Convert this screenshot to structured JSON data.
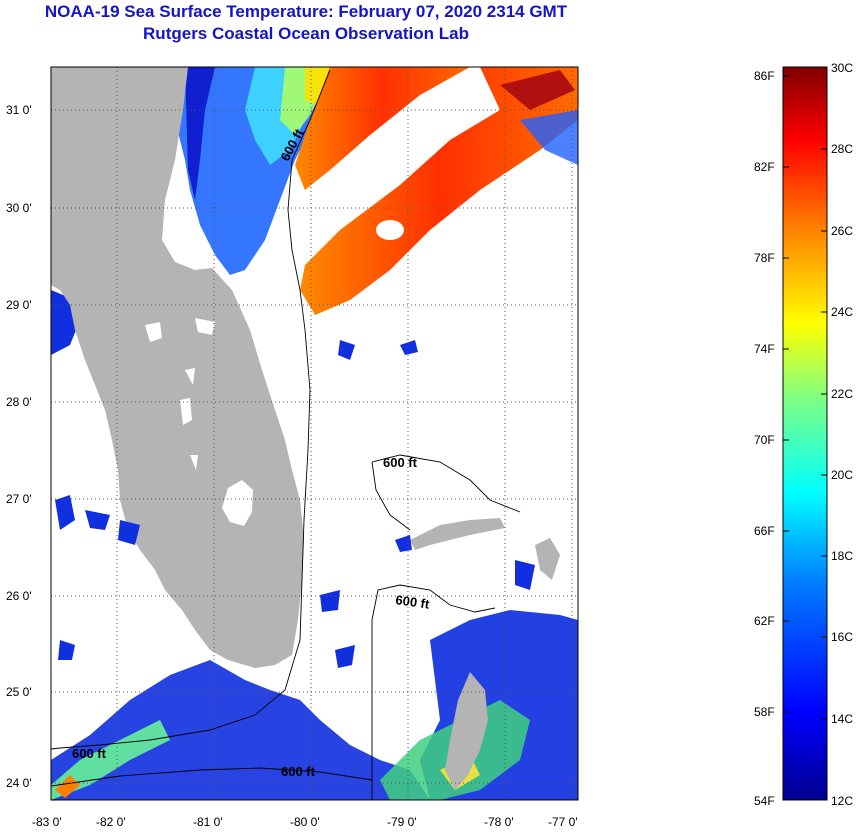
{
  "title_line1": "NOAA-19 Sea Surface Temperature:  February 07, 2020 2314 GMT",
  "title_line2": "Rutgers Coastal Ocean Observation Lab",
  "map": {
    "lon_ticks": [
      "-83 0'",
      "-82 0'",
      "-81 0'",
      "-80 0'",
      "-79 0'",
      "-78 0'",
      "-77 0'"
    ],
    "lat_ticks": [
      "31 0'",
      "30 0'",
      "29 0'",
      "28 0'",
      "27 0'",
      "26 0'",
      "25 0'",
      "24 0'"
    ],
    "contour_label": "600 ft",
    "colors": {
      "land": "#b4b4b4",
      "water_cloud": "#ffffff"
    }
  },
  "colorbar": {
    "fahrenheit_labels": [
      "86F",
      "82F",
      "78F",
      "74F",
      "70F",
      "66F",
      "62F",
      "58F",
      "54F"
    ],
    "celsius_labels": [
      "30C",
      "28C",
      "26C",
      "24C",
      "22C",
      "20C",
      "18C",
      "16C",
      "14C",
      "12C"
    ],
    "gradient_colors": [
      "#00008f",
      "#0000ff",
      "#0080ff",
      "#00ffff",
      "#80ff80",
      "#ffff00",
      "#ff8000",
      "#ff0000",
      "#800000"
    ]
  }
}
